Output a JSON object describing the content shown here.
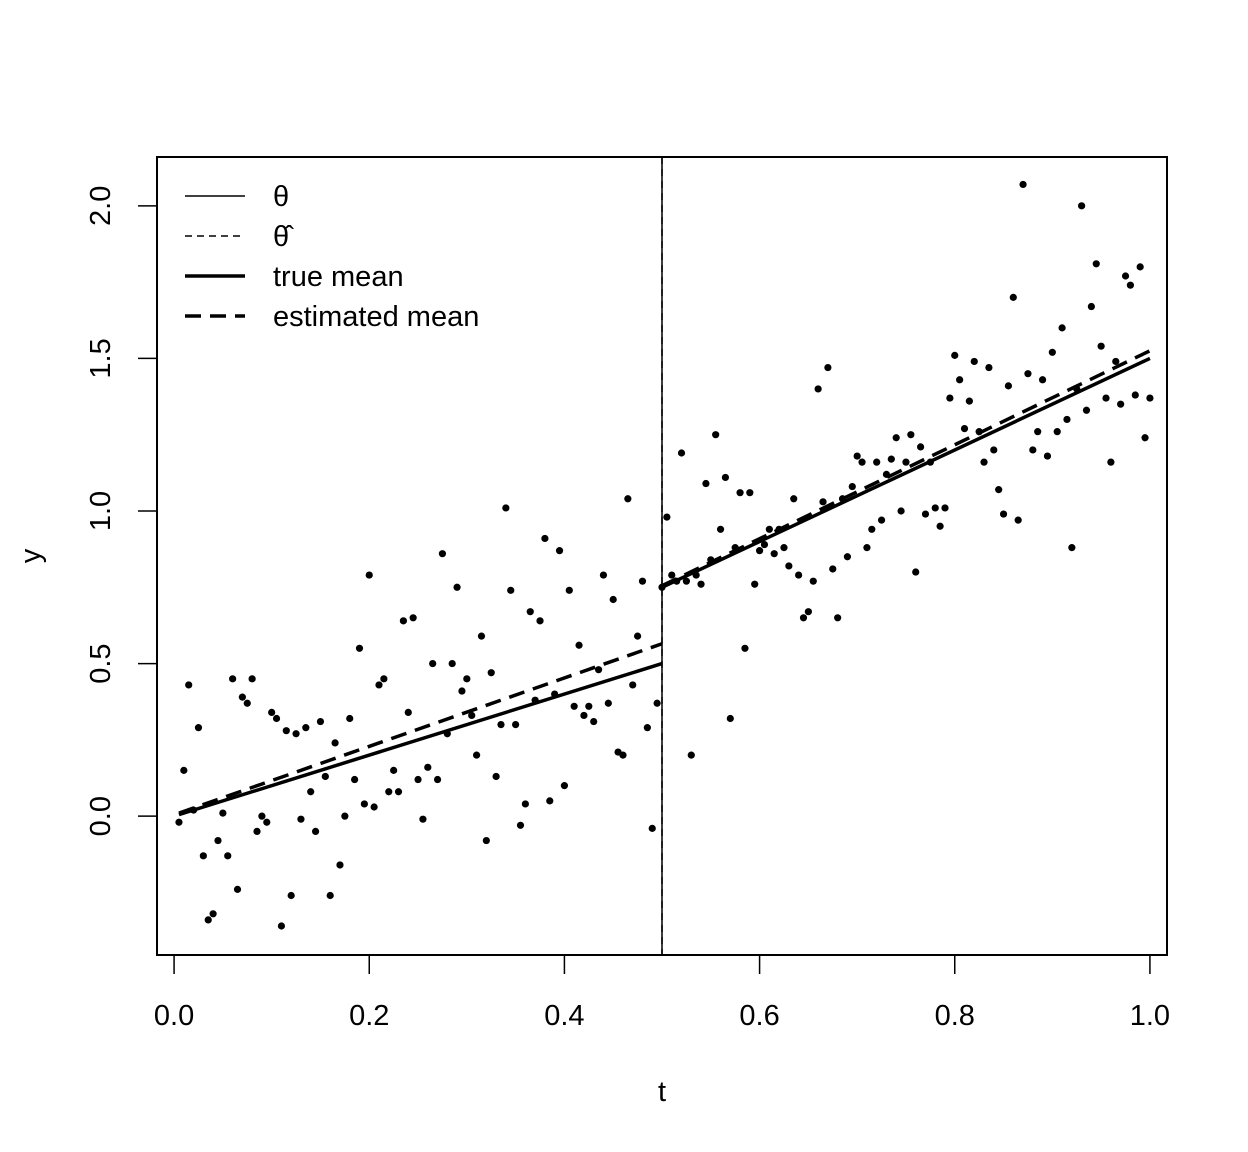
{
  "chart_data": {
    "type": "scatter",
    "title": "",
    "xlabel": "t",
    "ylabel": "y",
    "xlim": [
      -0.0175,
      1.0175
    ],
    "ylim": [
      -0.455,
      2.16
    ],
    "x_ticks": [
      0.0,
      0.2,
      0.4,
      0.6,
      0.8,
      1.0
    ],
    "x_tick_labels": [
      "0.0",
      "0.2",
      "0.4",
      "0.6",
      "0.8",
      "1.0"
    ],
    "y_ticks": [
      0.0,
      0.5,
      1.0,
      1.5,
      2.0
    ],
    "y_tick_labels": [
      "0.0",
      "0.5",
      "1.0",
      "1.5",
      "2.0"
    ],
    "grid": false,
    "legend_position": "top-left",
    "legend": [
      {
        "label": "θ",
        "style": "thin-solid"
      },
      {
        "label": "θ̂",
        "style": "thin-dashed"
      },
      {
        "label": "true mean",
        "style": "thick-solid"
      },
      {
        "label": "estimated mean",
        "style": "thick-dashed"
      }
    ],
    "vlines": [
      {
        "name": "θ",
        "x": 0.5,
        "style": "thin-solid"
      },
      {
        "name": "θ̂",
        "x": 0.5,
        "style": "thin-dashed"
      }
    ],
    "lines": [
      {
        "name": "true mean",
        "style": "thick-solid",
        "segments": [
          [
            [
              0.005,
              0.005
            ],
            [
              0.5,
              0.5
            ]
          ],
          [
            [
              0.5,
              0.75
            ],
            [
              1.0,
              1.5
            ]
          ]
        ]
      },
      {
        "name": "estimated mean",
        "style": "thick-dashed",
        "segments": [
          [
            [
              0.005,
              0.01
            ],
            [
              0.5,
              0.565
            ]
          ],
          [
            [
              0.5,
              0.755
            ],
            [
              1.0,
              1.525
            ]
          ]
        ]
      }
    ],
    "points": {
      "color": "#000000",
      "x": [
        0.005,
        0.01,
        0.015,
        0.02,
        0.025,
        0.03,
        0.035,
        0.04,
        0.045,
        0.05,
        0.055,
        0.06,
        0.065,
        0.07,
        0.075,
        0.08,
        0.085,
        0.09,
        0.095,
        0.1,
        0.105,
        0.11,
        0.115,
        0.12,
        0.125,
        0.13,
        0.135,
        0.14,
        0.145,
        0.15,
        0.155,
        0.16,
        0.165,
        0.17,
        0.175,
        0.18,
        0.185,
        0.19,
        0.195,
        0.2,
        0.205,
        0.21,
        0.215,
        0.22,
        0.225,
        0.23,
        0.235,
        0.24,
        0.245,
        0.25,
        0.255,
        0.26,
        0.265,
        0.27,
        0.275,
        0.28,
        0.285,
        0.29,
        0.295,
        0.3,
        0.305,
        0.31,
        0.315,
        0.32,
        0.325,
        0.33,
        0.335,
        0.34,
        0.345,
        0.35,
        0.355,
        0.36,
        0.365,
        0.37,
        0.375,
        0.38,
        0.385,
        0.39,
        0.395,
        0.4,
        0.405,
        0.41,
        0.415,
        0.42,
        0.425,
        0.43,
        0.435,
        0.44,
        0.445,
        0.45,
        0.455,
        0.46,
        0.465,
        0.47,
        0.475,
        0.48,
        0.485,
        0.49,
        0.495,
        0.5,
        0.505,
        0.51,
        0.515,
        0.52,
        0.525,
        0.53,
        0.535,
        0.54,
        0.545,
        0.55,
        0.555,
        0.56,
        0.565,
        0.57,
        0.575,
        0.58,
        0.585,
        0.59,
        0.595,
        0.6,
        0.605,
        0.61,
        0.615,
        0.62,
        0.625,
        0.63,
        0.635,
        0.64,
        0.645,
        0.65,
        0.655,
        0.66,
        0.665,
        0.67,
        0.675,
        0.68,
        0.685,
        0.69,
        0.695,
        0.7,
        0.705,
        0.71,
        0.715,
        0.72,
        0.725,
        0.73,
        0.735,
        0.74,
        0.745,
        0.75,
        0.755,
        0.76,
        0.765,
        0.77,
        0.775,
        0.78,
        0.785,
        0.79,
        0.795,
        0.8,
        0.805,
        0.81,
        0.815,
        0.82,
        0.825,
        0.83,
        0.835,
        0.84,
        0.845,
        0.85,
        0.855,
        0.86,
        0.865,
        0.87,
        0.875,
        0.88,
        0.885,
        0.89,
        0.895,
        0.9,
        0.905,
        0.91,
        0.915,
        0.92,
        0.925,
        0.93,
        0.935,
        0.94,
        0.945,
        0.95,
        0.955,
        0.96,
        0.965,
        0.97,
        0.975,
        0.98,
        0.985,
        0.99,
        0.995,
        1.0
      ],
      "y": [
        -0.02,
        0.15,
        0.43,
        0.02,
        0.29,
        -0.13,
        -0.34,
        -0.32,
        -0.08,
        0.01,
        -0.13,
        0.45,
        -0.24,
        0.39,
        0.37,
        0.45,
        -0.05,
        0,
        -0.02,
        0.34,
        0.32,
        -0.36,
        0.28,
        -0.26,
        0.27,
        -0.01,
        0.29,
        0.08,
        -0.05,
        0.31,
        0.13,
        -0.26,
        0.24,
        -0.16,
        0,
        0.32,
        0.12,
        0.55,
        0.04,
        0.79,
        0.03,
        0.43,
        0.45,
        0.08,
        0.15,
        0.08,
        0.64,
        0.34,
        0.65,
        0.12,
        -0.01,
        0.16,
        0.5,
        0.12,
        0.86,
        0.27,
        0.5,
        0.75,
        0.41,
        0.45,
        0.33,
        0.2,
        0.59,
        -0.08,
        0.47,
        0.13,
        0.3,
        1.01,
        0.74,
        0.3,
        -0.03,
        0.04,
        0.67,
        0.38,
        0.64,
        0.91,
        0.05,
        0.4,
        0.87,
        0.1,
        0.74,
        0.36,
        0.56,
        0.33,
        0.36,
        0.31,
        0.48,
        0.79,
        0.37,
        0.71,
        0.21,
        0.2,
        1.04,
        0.43,
        0.59,
        0.77,
        0.29,
        -0.04,
        0.37,
        0.75,
        0.98,
        0.79,
        0.77,
        1.19,
        0.77,
        0.2,
        0.79,
        0.76,
        1.09,
        0.84,
        1.25,
        0.94,
        1.11,
        0.32,
        0.88,
        1.06,
        0.55,
        1.06,
        0.76,
        0.87,
        0.89,
        0.94,
        0.86,
        0.94,
        0.88,
        0.82,
        1.04,
        0.79,
        0.65,
        0.67,
        0.77,
        1.4,
        1.03,
        1.47,
        0.81,
        0.65,
        1.04,
        0.85,
        1.08,
        1.18,
        1.16,
        0.88,
        0.94,
        1.16,
        0.97,
        1.12,
        1.17,
        1.24,
        1,
        1.16,
        1.25,
        0.8,
        1.21,
        0.99,
        1.16,
        1.01,
        0.95,
        1.01,
        1.37,
        1.51,
        1.43,
        1.27,
        1.36,
        1.49,
        1.26,
        1.16,
        1.47,
        1.2,
        1.07,
        0.99,
        1.41,
        1.7,
        0.97,
        2.07,
        1.45,
        1.2,
        1.26,
        1.43,
        1.18,
        1.52,
        1.26,
        1.6,
        1.3,
        0.88,
        1.4,
        2,
        1.33,
        1.67,
        1.81,
        1.54,
        1.37,
        1.16,
        1.49,
        1.35,
        1.77,
        1.74,
        1.38,
        1.8,
        1.24,
        1.37
      ]
    }
  }
}
